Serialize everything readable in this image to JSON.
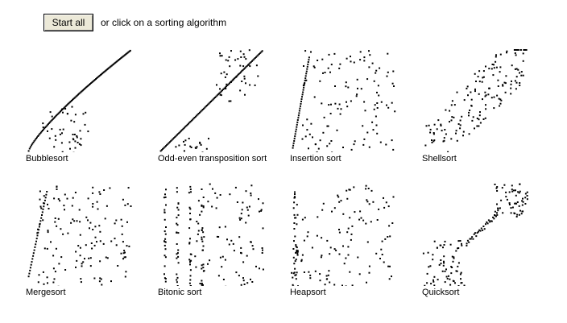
{
  "header": {
    "start_button": "Start all",
    "hint": "or click on a sorting algorithm"
  },
  "panels": [
    {
      "label": "Bubblesort",
      "pattern": "bubble"
    },
    {
      "label": "Odd-even transposition sort",
      "pattern": "oddeven"
    },
    {
      "label": "Insertion sort",
      "pattern": "insertion"
    },
    {
      "label": "Shellsort",
      "pattern": "shell"
    },
    {
      "label": "Mergesort",
      "pattern": "merge"
    },
    {
      "label": "Bitonic sort",
      "pattern": "bitonic"
    },
    {
      "label": "Heapsort",
      "pattern": "heap"
    },
    {
      "label": "Quicksort",
      "pattern": "quick"
    }
  ],
  "dot_color": "#000000"
}
